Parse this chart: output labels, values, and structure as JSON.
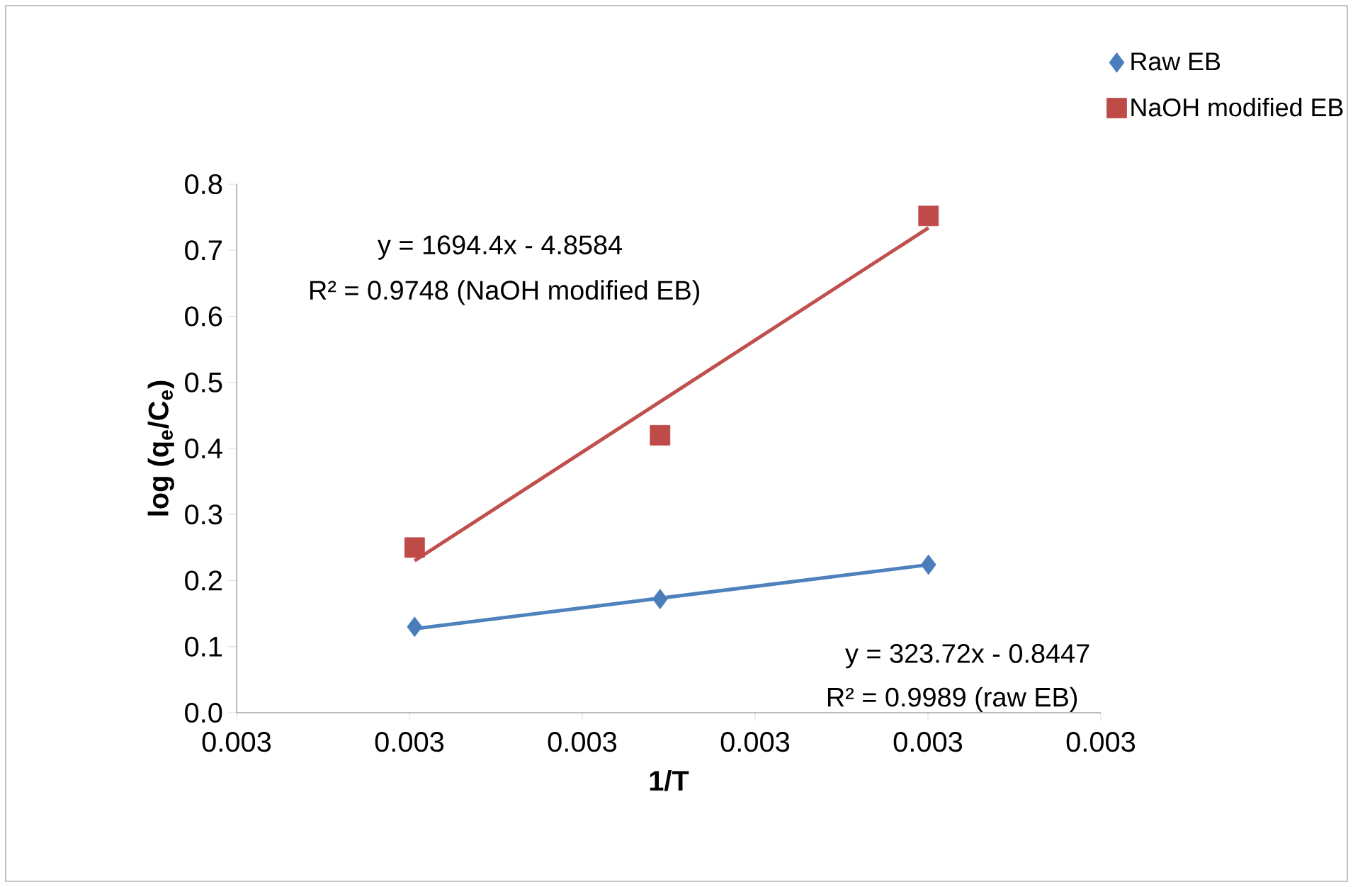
{
  "chart_data": {
    "type": "scatter",
    "xlabel": "1/T",
    "ylabel": "**log (q$_{e}$/C$_{e}$)**",
    "xlim": [
      0.0029,
      0.0034
    ],
    "ylim": [
      0,
      0.8
    ],
    "xticks": [
      {
        "value": 0.0029,
        "label": "0.003"
      },
      {
        "value": 0.003,
        "label": "0.003"
      },
      {
        "value": 0.0031,
        "label": "0.003"
      },
      {
        "value": 0.0032,
        "label": "0.003"
      },
      {
        "value": 0.0033,
        "label": "0.003"
      },
      {
        "value": 0.0034,
        "label": "0.003"
      }
    ],
    "yticks": [
      {
        "value": 0,
        "label": "0.0"
      },
      0.1,
      0.2,
      0.3,
      0.4,
      0.5,
      0.6,
      0.7,
      0.8
    ],
    "legend": "top right",
    "grid": false,
    "series": [
      {
        "name": "Raw EB",
        "marker": "diamond",
        "color": "#4a7ebb",
        "x": [
          0.003003,
          0.003145,
          0.0033003
        ],
        "values": [
          0.13,
          0.172,
          0.224
        ]
      },
      {
        "name": "NaOH modified EB",
        "marker": "square",
        "color": "#be4b48",
        "x": [
          0.003003,
          0.003145,
          0.0033003
        ],
        "values": [
          0.25,
          0.42,
          0.752
        ]
      },
      {
        "type": "line",
        "marker": "none",
        "color": "#4f81bd",
        "x": [
          0.003003,
          0.0033003
        ],
        "values": [
          0.127,
          0.224
        ]
      },
      {
        "type": "line",
        "marker": "none",
        "color": "#c0504d",
        "x": [
          0.003003,
          0.0033003
        ],
        "values": [
          0.23,
          0.734
        ]
      }
    ],
    "annotations": [
      "y = 1694.4x - 4.8584",
      "R² = 0.9748 (NaOH modified EB)",
      "y = 323.72x - 0.8447",
      "R² = 0.9989 (raw EB)"
    ]
  }
}
